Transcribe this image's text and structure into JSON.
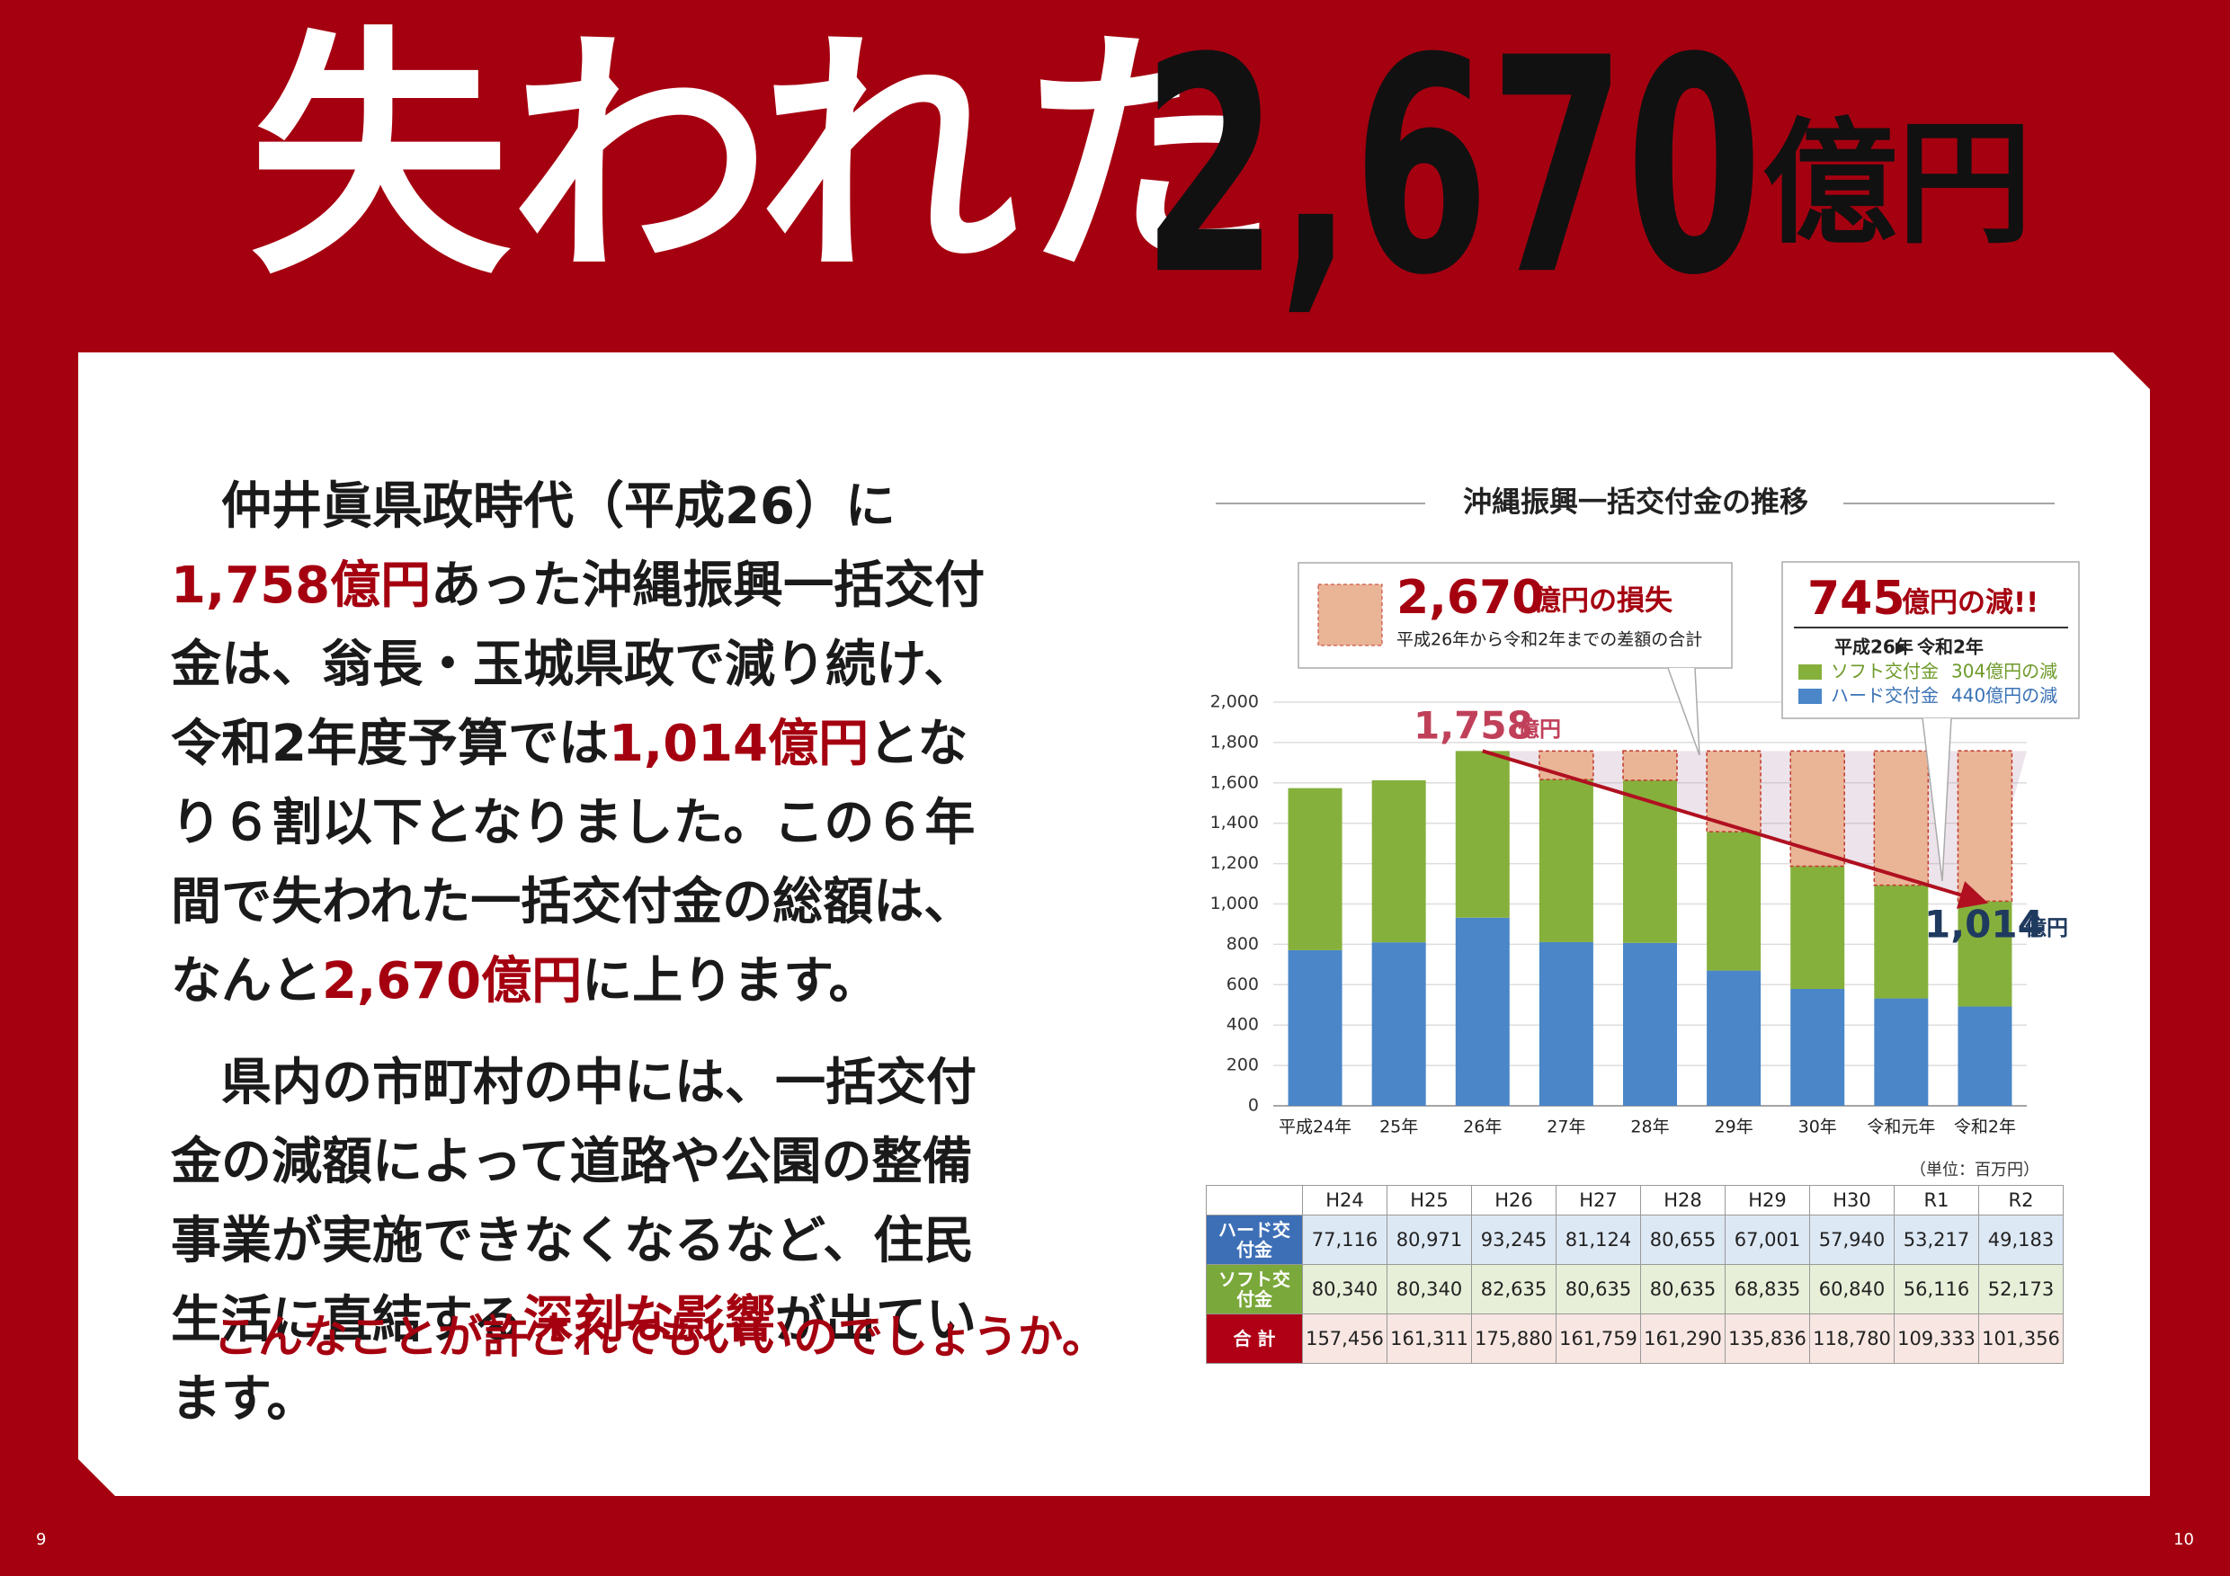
{
  "header": {
    "title_left": "失われた",
    "title_number": "2,670",
    "title_unit": "億円"
  },
  "body": {
    "paragraphs": [
      [
        "仲井眞県政時代（平成26）に",
        "1,758億円",
        "あった沖縄振興一括交付金は、翁長・玉城県政で減り続け、令和2年度予算では",
        "1,014億円",
        "となり６割以下となりました。この６年間で失われた一括交付金の総額は、なんと",
        "2,670億円",
        "に上ります。"
      ],
      [
        "県内の市町村の中には、一括交付金の減額によって道路や公園の整備事業が実施できなくなるなど、住民生活に直結する",
        "深刻な影響",
        "が出ています。"
      ]
    ],
    "closing": "こんなことが許されてもいいのでしょうか。"
  },
  "chart_data": {
    "type": "bar",
    "stacked": true,
    "title": "沖縄振興一括交付金の推移",
    "categories": [
      "平成24年",
      "25年",
      "26年",
      "27年",
      "28年",
      "29年",
      "30年",
      "令和元年",
      "令和2年"
    ],
    "series": [
      {
        "name": "ハード交付金",
        "color": "#4a86c8",
        "values": [
          771,
          810,
          932,
          811,
          807,
          670,
          579,
          532,
          492
        ]
      },
      {
        "name": "ソフト交付金",
        "color": "#86b03c",
        "values": [
          803,
          803,
          826,
          806,
          806,
          688,
          608,
          561,
          522
        ]
      },
      {
        "color": "#eab497",
        "values": [
          null,
          null,
          null,
          141,
          146,
          400,
          571,
          665,
          745
        ]
      }
    ],
    "ylim": [
      0,
      2000
    ],
    "yticks": [
      0,
      200,
      400,
      600,
      800,
      {
        "value": 1000,
        "label": "1,000"
      },
      {
        "value": 1200,
        "label": "1,200"
      },
      {
        "value": 1400,
        "label": "1,400"
      },
      {
        "value": 1600,
        "label": "1,600"
      },
      {
        "value": 1800,
        "label": "1,800"
      },
      {
        "value": 2000,
        "label": "2,000"
      }
    ],
    "grid": true,
    "annotations": {
      "start_number": "1,758",
      "start_unit": "億円",
      "end_number": "1,014",
      "end_unit": "億円"
    },
    "loss_box": {
      "number": "2,670",
      "rest": "億円の損失",
      "note": "平成26年から令和2年までの差額の合計"
    },
    "decrease_box": {
      "number": "745",
      "rest": "億円の減!!",
      "from": "平成26年",
      "to": "令和2年",
      "soft": "304億円の減",
      "hard": "440億円の減"
    }
  },
  "table": {
    "unit": "（単位：百万円）",
    "columns": [
      "H24",
      "H25",
      "H26",
      "H27",
      "H28",
      "H29",
      "H30",
      "R1",
      "R2"
    ],
    "rows": [
      {
        "label": "ハード交付金",
        "values": [
          "77,116",
          "80,971",
          "93,245",
          "81,124",
          "80,655",
          "67,001",
          "57,940",
          "53,217",
          "49,183"
        ]
      },
      {
        "label": "ソフト交付金",
        "values": [
          "80,340",
          "80,340",
          "82,635",
          "80,635",
          "80,635",
          "68,835",
          "60,840",
          "56,116",
          "52,173"
        ]
      },
      {
        "label": "合 計",
        "values": [
          "157,456",
          "161,311",
          "175,880",
          "161,759",
          "161,290",
          "135,836",
          "118,780",
          "109,333",
          "101,356"
        ]
      }
    ]
  },
  "pages": {
    "left": "9",
    "right": "10"
  }
}
